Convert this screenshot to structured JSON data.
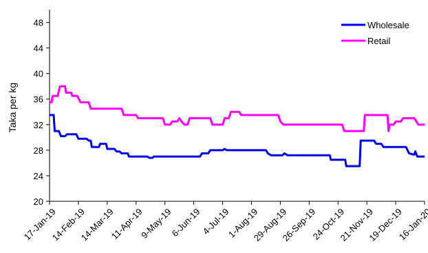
{
  "chart_data": {
    "type": "line",
    "title": "",
    "xlabel": "",
    "ylabel": "Taka per kg",
    "ylim": [
      20,
      50
    ],
    "yticks": [
      20,
      24,
      28,
      32,
      36,
      40,
      44,
      48
    ],
    "xticks": [
      "17-Jan-19",
      "14-Feb-19",
      "14-Mar-19",
      "11-Apr-19",
      "9-May-19",
      "6-Jun-19",
      "4-Jul-19",
      "1-Aug-19",
      "29-Aug-19",
      "26-Sep-19",
      "24-Oct-19",
      "21-Nov-19",
      "19-Dec-19",
      "16-Jan-20"
    ],
    "xlim": [
      "2019-01-17",
      "2020-01-16"
    ],
    "grid": false,
    "legend_position": "top-right",
    "series": [
      {
        "name": "Wholesale",
        "color": "#0000ee",
        "points": [
          [
            "2019-01-17",
            33.5
          ],
          [
            "2019-01-21",
            33.5
          ],
          [
            "2019-01-22",
            31
          ],
          [
            "2019-01-26",
            31
          ],
          [
            "2019-01-28",
            30.2
          ],
          [
            "2019-02-01",
            30.2
          ],
          [
            "2019-02-03",
            30.5
          ],
          [
            "2019-02-12",
            30.5
          ],
          [
            "2019-02-14",
            29.8
          ],
          [
            "2019-02-22",
            29.8
          ],
          [
            "2019-02-24",
            29.5
          ],
          [
            "2019-02-26",
            29.5
          ],
          [
            "2019-02-27",
            28.5
          ],
          [
            "2019-03-06",
            28.5
          ],
          [
            "2019-03-07",
            29
          ],
          [
            "2019-03-13",
            29
          ],
          [
            "2019-03-14",
            28.2
          ],
          [
            "2019-03-21",
            28.2
          ],
          [
            "2019-03-23",
            27.8
          ],
          [
            "2019-03-26",
            27.8
          ],
          [
            "2019-03-28",
            27.5
          ],
          [
            "2019-04-03",
            27.5
          ],
          [
            "2019-04-04",
            27
          ],
          [
            "2019-04-22",
            27
          ],
          [
            "2019-04-24",
            26.8
          ],
          [
            "2019-04-27",
            26.8
          ],
          [
            "2019-04-28",
            27
          ],
          [
            "2019-06-12",
            27
          ],
          [
            "2019-06-14",
            27.5
          ],
          [
            "2019-06-20",
            27.5
          ],
          [
            "2019-06-22",
            28
          ],
          [
            "2019-07-04",
            28
          ],
          [
            "2019-07-06",
            28.2
          ],
          [
            "2019-07-08",
            28
          ],
          [
            "2019-08-15",
            28
          ],
          [
            "2019-08-17",
            27.5
          ],
          [
            "2019-08-20",
            27.2
          ],
          [
            "2019-08-31",
            27.2
          ],
          [
            "2019-09-02",
            27.5
          ],
          [
            "2019-09-05",
            27.2
          ],
          [
            "2019-10-16",
            27.2
          ],
          [
            "2019-10-17",
            26.5
          ],
          [
            "2019-10-31",
            26.5
          ],
          [
            "2019-11-01",
            25.5
          ],
          [
            "2019-11-14",
            25.5
          ],
          [
            "2019-11-15",
            29.5
          ],
          [
            "2019-11-28",
            29.5
          ],
          [
            "2019-11-30",
            29
          ],
          [
            "2019-12-05",
            29
          ],
          [
            "2019-12-07",
            28.5
          ],
          [
            "2019-12-29",
            28.5
          ],
          [
            "2020-01-01",
            27.5
          ],
          [
            "2020-01-06",
            27.3
          ],
          [
            "2020-01-07",
            27.8
          ],
          [
            "2020-01-09",
            27
          ],
          [
            "2020-01-16",
            27
          ]
        ]
      },
      {
        "name": "Retail",
        "color": "#ff00ff",
        "points": [
          [
            "2019-01-17",
            35.5
          ],
          [
            "2019-01-19",
            35.5
          ],
          [
            "2019-01-20",
            36.5
          ],
          [
            "2019-01-25",
            36.5
          ],
          [
            "2019-01-26",
            37.3
          ],
          [
            "2019-01-27",
            38
          ],
          [
            "2019-02-01",
            38
          ],
          [
            "2019-02-02",
            37
          ],
          [
            "2019-02-07",
            37
          ],
          [
            "2019-02-08",
            36.5
          ],
          [
            "2019-02-13",
            36.5
          ],
          [
            "2019-02-16",
            35.5
          ],
          [
            "2019-02-24",
            35.5
          ],
          [
            "2019-02-26",
            34.5
          ],
          [
            "2019-03-28",
            34.5
          ],
          [
            "2019-03-30",
            33.5
          ],
          [
            "2019-04-11",
            33.5
          ],
          [
            "2019-04-13",
            33
          ],
          [
            "2019-05-07",
            33
          ],
          [
            "2019-05-09",
            32
          ],
          [
            "2019-05-14",
            32
          ],
          [
            "2019-05-16",
            32.5
          ],
          [
            "2019-05-21",
            32.5
          ],
          [
            "2019-05-23",
            33
          ],
          [
            "2019-05-25",
            32.5
          ],
          [
            "2019-05-28",
            32
          ],
          [
            "2019-05-31",
            32
          ],
          [
            "2019-06-02",
            33
          ],
          [
            "2019-06-22",
            33
          ],
          [
            "2019-06-24",
            32
          ],
          [
            "2019-07-04",
            32
          ],
          [
            "2019-07-06",
            33
          ],
          [
            "2019-07-10",
            33
          ],
          [
            "2019-07-12",
            34
          ],
          [
            "2019-07-20",
            34
          ],
          [
            "2019-07-22",
            33.5
          ],
          [
            "2019-08-27",
            33.5
          ],
          [
            "2019-08-29",
            32.5
          ],
          [
            "2019-09-01",
            32
          ],
          [
            "2019-10-28",
            32
          ],
          [
            "2019-10-30",
            31
          ],
          [
            "2019-11-18",
            31
          ],
          [
            "2019-11-19",
            33.5
          ],
          [
            "2019-12-11",
            33.5
          ],
          [
            "2019-12-12",
            31
          ],
          [
            "2019-12-13",
            32
          ],
          [
            "2019-12-17",
            32
          ],
          [
            "2019-12-19",
            32.5
          ],
          [
            "2019-12-24",
            32.5
          ],
          [
            "2019-12-26",
            33
          ],
          [
            "2020-01-06",
            33
          ],
          [
            "2020-01-10",
            32
          ],
          [
            "2020-01-16",
            32
          ]
        ]
      }
    ]
  }
}
